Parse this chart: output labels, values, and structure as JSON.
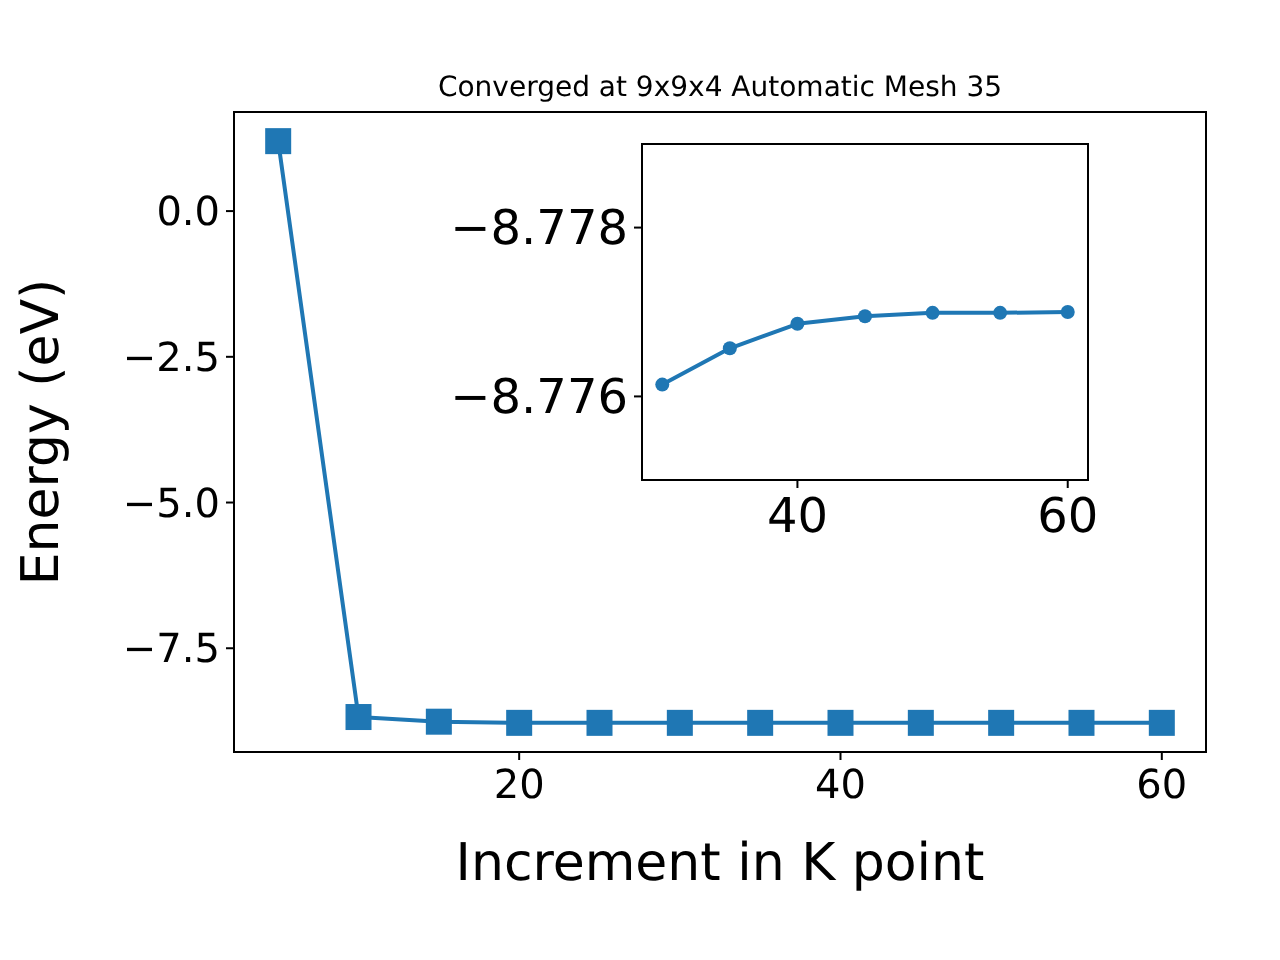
{
  "chart_data": [
    {
      "type": "line",
      "title": "Converged at 9x9x4 Automatic Mesh 35",
      "xlabel": "Increment in K point",
      "ylabel": "Energy (eV)",
      "x": [
        5,
        10,
        15,
        20,
        25,
        30,
        35,
        40,
        45,
        50,
        55,
        60
      ],
      "values": [
        1.2,
        -8.68,
        -8.76,
        -8.78,
        -8.78,
        -8.78,
        -8.78,
        -8.78,
        -8.78,
        -8.78,
        -8.78,
        -8.78
      ],
      "color": "#1f77b4",
      "marker": "square",
      "xlim": [
        2.25,
        62.75
      ],
      "ylim": [
        -9.28,
        1.7
      ],
      "xticks": [
        20,
        40,
        60
      ],
      "yticks": [
        {
          "value": 0,
          "label": "0.0"
        },
        {
          "value": -2.5,
          "label": "−2.5"
        },
        {
          "value": -5,
          "label": "−5.0"
        },
        {
          "value": -7.5,
          "label": "−7.5"
        }
      ],
      "grid": false
    },
    {
      "type": "line",
      "x": [
        30,
        35,
        40,
        45,
        50,
        55,
        60
      ],
      "values": [
        -8.77614,
        -8.77657,
        -8.77686,
        -8.77695,
        -8.77699,
        -8.77699,
        -8.777
      ],
      "color": "#1f77b4",
      "marker": "circle",
      "xlim": [
        28.5,
        61.5
      ],
      "ylim": [
        -8.77501,
        -8.77899
      ],
      "xticks": [
        40,
        60
      ],
      "yticks": [
        {
          "value": -8.778,
          "label": "−8.778"
        },
        {
          "value": -8.776,
          "label": "−8.776"
        }
      ],
      "grid": false
    }
  ]
}
